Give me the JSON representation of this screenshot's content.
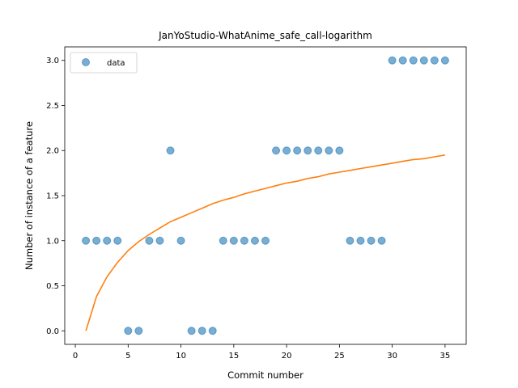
{
  "chart_data": {
    "type": "scatter",
    "title": "JanYoStudio-WhatAnime_safe_call-logarithm",
    "xlabel": "Commit number",
    "ylabel": "Number of instance of a feature",
    "xlim": [
      -1,
      37
    ],
    "ylim": [
      -0.15,
      3.15
    ],
    "xticks": [
      0,
      5,
      10,
      15,
      20,
      25,
      30,
      35
    ],
    "yticks": [
      0.0,
      0.5,
      1.0,
      1.5,
      2.0,
      2.5,
      3.0
    ],
    "ytick_labels": [
      "0.0",
      "0.5",
      "1.0",
      "1.5",
      "2.0",
      "2.5",
      "3.0"
    ],
    "legend": {
      "placement": "top-left",
      "entries": [
        "data"
      ]
    },
    "series": [
      {
        "name": "data",
        "kind": "scatter",
        "color": "#1f77b4",
        "x": [
          1,
          2,
          3,
          4,
          5,
          6,
          7,
          8,
          9,
          10,
          11,
          12,
          13,
          14,
          15,
          16,
          17,
          18,
          19,
          20,
          21,
          22,
          23,
          24,
          25,
          26,
          27,
          28,
          29,
          30,
          31,
          32,
          33,
          34,
          35
        ],
        "y": [
          1,
          1,
          1,
          1,
          0,
          0,
          1,
          1,
          2,
          1,
          0,
          0,
          0,
          1,
          1,
          1,
          1,
          1,
          2,
          2,
          2,
          2,
          2,
          2,
          2,
          1,
          1,
          1,
          1,
          3,
          3,
          3,
          3,
          3,
          3
        ]
      },
      {
        "kind": "line",
        "color": "#ff7f0e",
        "x": [
          1,
          2,
          3,
          4,
          5,
          6,
          7,
          8,
          9,
          10,
          11,
          12,
          13,
          14,
          15,
          16,
          17,
          18,
          19,
          20,
          21,
          22,
          23,
          24,
          25,
          26,
          27,
          28,
          29,
          30,
          31,
          32,
          33,
          34,
          35
        ],
        "y": [
          0.0,
          0.38,
          0.6,
          0.76,
          0.89,
          0.99,
          1.07,
          1.14,
          1.21,
          1.26,
          1.31,
          1.36,
          1.41,
          1.45,
          1.48,
          1.52,
          1.55,
          1.58,
          1.61,
          1.64,
          1.66,
          1.69,
          1.71,
          1.74,
          1.76,
          1.78,
          1.8,
          1.82,
          1.84,
          1.86,
          1.88,
          1.9,
          1.91,
          1.93,
          1.95
        ]
      }
    ]
  }
}
